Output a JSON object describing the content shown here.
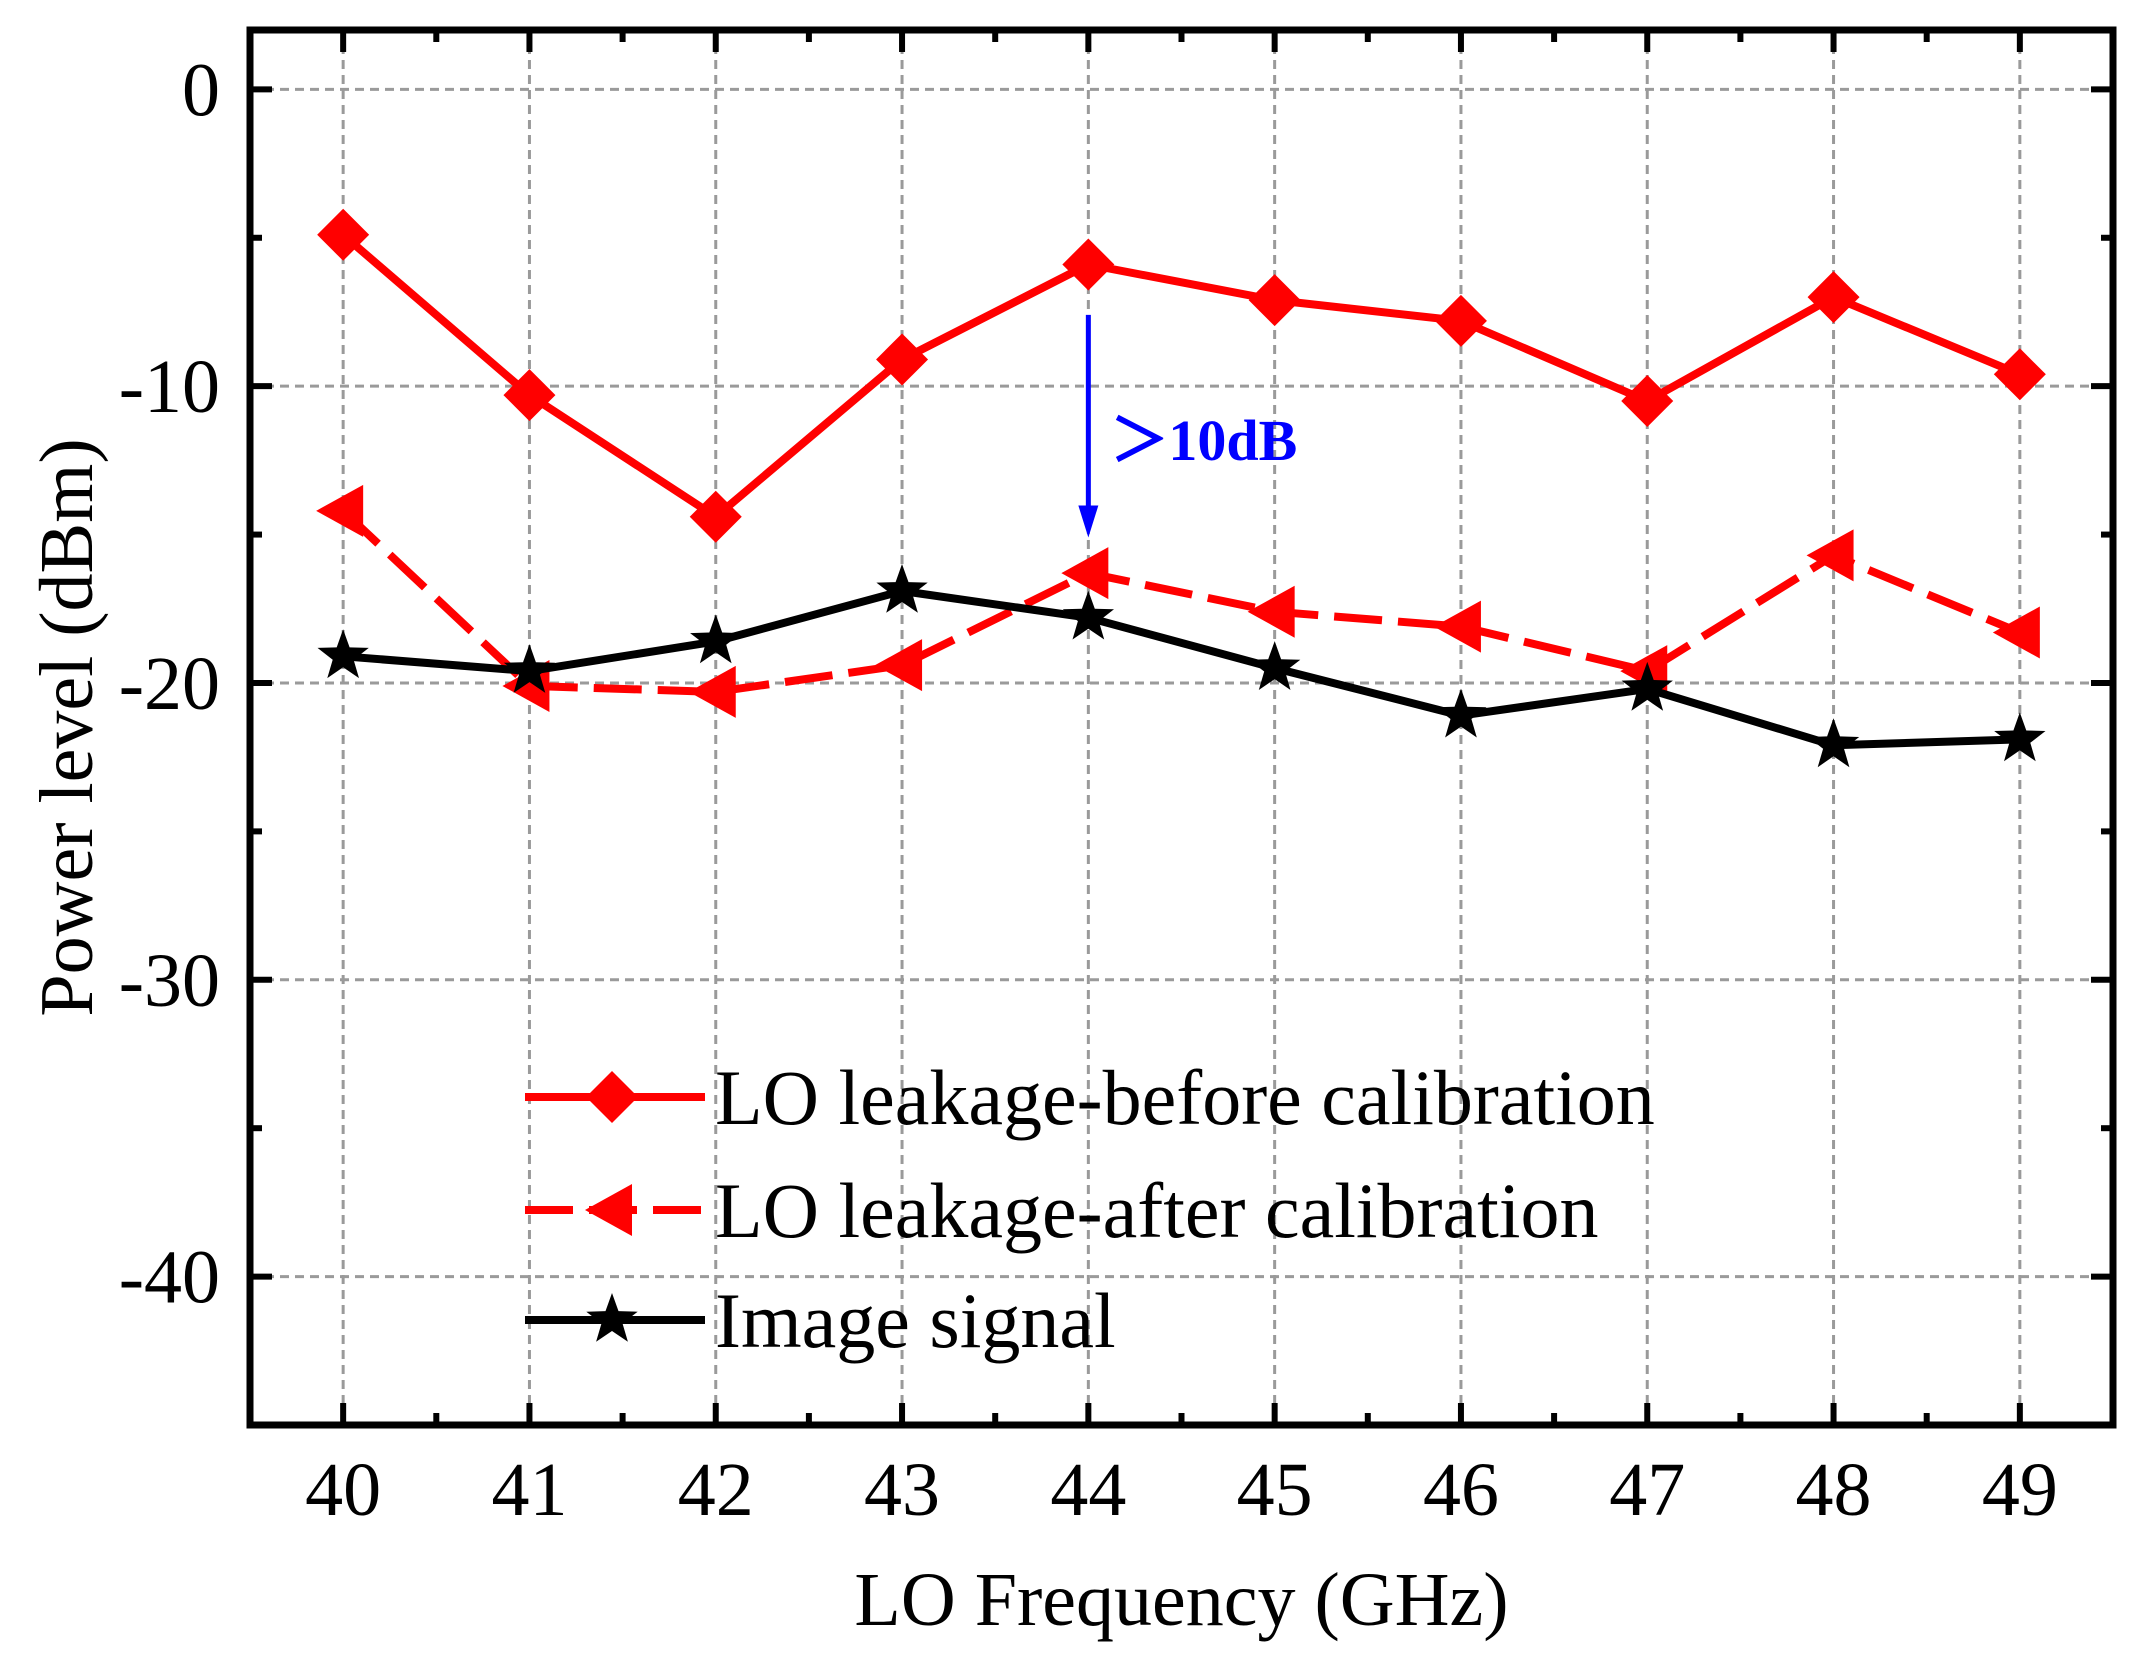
{
  "chart_data": {
    "type": "line",
    "title": "",
    "xlabel": "LO Frequency (GHz)",
    "ylabel": "Power level (dBm)",
    "x": [
      40,
      41,
      42,
      43,
      44,
      45,
      46,
      47,
      48,
      49
    ],
    "xlim": [
      39.5,
      49.5
    ],
    "ylim": [
      -45,
      2
    ],
    "xticks": [
      40,
      41,
      42,
      43,
      44,
      45,
      46,
      47,
      48,
      49
    ],
    "yticks": [
      0,
      -10,
      -20,
      -30,
      -40
    ],
    "grid": true,
    "legend_position": "bottom-left",
    "series": [
      {
        "name": "LO leakage-before calibration",
        "marker": "diamond",
        "color": "#ff0000",
        "dash": "solid",
        "values": [
          -4.9,
          -10.3,
          -14.4,
          -9.1,
          -5.9,
          -7.1,
          -7.8,
          -10.5,
          -7.0,
          -9.6
        ]
      },
      {
        "name": "LO leakage-after calibration",
        "marker": "triangle-left",
        "color": "#ff0000",
        "dash": "dashed",
        "values": [
          -14.2,
          -20.1,
          -20.3,
          -19.4,
          -16.3,
          -17.6,
          -18.1,
          -19.6,
          -15.7,
          -18.3
        ]
      },
      {
        "name": "Image signal",
        "marker": "star",
        "color": "#000000",
        "dash": "solid",
        "values": [
          -19.1,
          -19.6,
          -18.6,
          -16.9,
          -17.8,
          -19.5,
          -21.1,
          -20.2,
          -22.1,
          -21.9
        ]
      }
    ],
    "annotations": [
      {
        "text": "＞10dB",
        "color": "#0000ff",
        "x": 44,
        "y_from": -7.6,
        "y_to": -15.1
      }
    ]
  }
}
